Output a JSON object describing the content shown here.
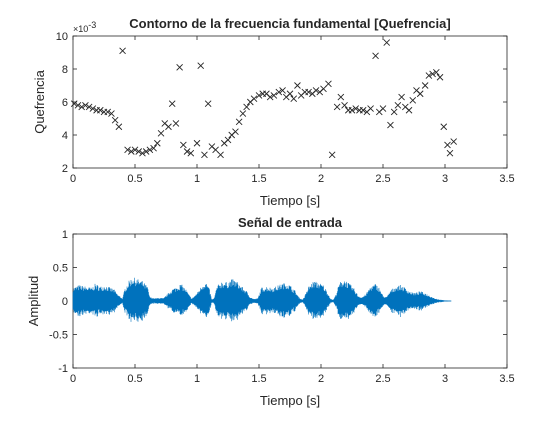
{
  "figure": {
    "background": "#ffffff",
    "marker_color": "#262626",
    "signal_color": "#0072BD"
  },
  "chart_data": [
    {
      "type": "scatter",
      "marker": "x",
      "title": "Contorno de la frecuencia fundamental [Quefrencia]",
      "xlabel": "Tiempo [s]",
      "ylabel": "Quefrencia",
      "y_exponent_label": "×10",
      "y_exponent": "-3",
      "xlim": [
        0,
        3.5
      ],
      "ylim": [
        2,
        10
      ],
      "x_ticks": [
        "0",
        "0.5",
        "1",
        "1.5",
        "2",
        "2.5",
        "3",
        "3.5"
      ],
      "y_ticks": [
        "2",
        "4",
        "6",
        "8",
        "10"
      ],
      "series": [
        {
          "points": [
            [
              0.01,
              5.9
            ],
            [
              0.04,
              5.8
            ],
            [
              0.07,
              5.7
            ],
            [
              0.1,
              5.8
            ],
            [
              0.13,
              5.7
            ],
            [
              0.16,
              5.6
            ],
            [
              0.19,
              5.5
            ],
            [
              0.22,
              5.5
            ],
            [
              0.25,
              5.4
            ],
            [
              0.28,
              5.4
            ],
            [
              0.31,
              5.3
            ],
            [
              0.34,
              4.9
            ],
            [
              0.37,
              4.5
            ],
            [
              0.4,
              9.1
            ],
            [
              0.44,
              3.1
            ],
            [
              0.47,
              3.0
            ],
            [
              0.5,
              3.1
            ],
            [
              0.53,
              3.0
            ],
            [
              0.56,
              2.9
            ],
            [
              0.59,
              3.0
            ],
            [
              0.62,
              3.1
            ],
            [
              0.65,
              3.2
            ],
            [
              0.68,
              3.5
            ],
            [
              0.71,
              4.1
            ],
            [
              0.74,
              4.7
            ],
            [
              0.77,
              4.5
            ],
            [
              0.8,
              5.9
            ],
            [
              0.83,
              4.7
            ],
            [
              0.86,
              8.1
            ],
            [
              0.89,
              3.4
            ],
            [
              0.92,
              3.0
            ],
            [
              0.95,
              2.9
            ],
            [
              1.0,
              3.5
            ],
            [
              1.03,
              8.2
            ],
            [
              1.06,
              2.8
            ],
            [
              1.09,
              5.9
            ],
            [
              1.12,
              3.3
            ],
            [
              1.15,
              3.1
            ],
            [
              1.19,
              2.8
            ],
            [
              1.22,
              3.5
            ],
            [
              1.25,
              3.7
            ],
            [
              1.28,
              4.0
            ],
            [
              1.31,
              4.2
            ],
            [
              1.34,
              4.8
            ],
            [
              1.37,
              5.3
            ],
            [
              1.4,
              5.7
            ],
            [
              1.43,
              6.0
            ],
            [
              1.46,
              6.2
            ],
            [
              1.5,
              6.4
            ],
            [
              1.53,
              6.5
            ],
            [
              1.56,
              6.5
            ],
            [
              1.59,
              6.3
            ],
            [
              1.62,
              6.4
            ],
            [
              1.66,
              6.6
            ],
            [
              1.69,
              6.7
            ],
            [
              1.72,
              6.3
            ],
            [
              1.75,
              6.5
            ],
            [
              1.78,
              6.2
            ],
            [
              1.81,
              7.0
            ],
            [
              1.84,
              6.4
            ],
            [
              1.87,
              6.6
            ],
            [
              1.9,
              6.6
            ],
            [
              1.93,
              6.5
            ],
            [
              1.96,
              6.7
            ],
            [
              1.99,
              6.6
            ],
            [
              2.02,
              6.8
            ],
            [
              2.06,
              7.1
            ],
            [
              2.09,
              2.8
            ],
            [
              2.13,
              5.7
            ],
            [
              2.16,
              6.3
            ],
            [
              2.19,
              5.8
            ],
            [
              2.22,
              5.5
            ],
            [
              2.25,
              5.5
            ],
            [
              2.28,
              5.6
            ],
            [
              2.31,
              5.5
            ],
            [
              2.34,
              5.5
            ],
            [
              2.37,
              5.4
            ],
            [
              2.4,
              5.6
            ],
            [
              2.44,
              8.8
            ],
            [
              2.47,
              5.4
            ],
            [
              2.5,
              5.6
            ],
            [
              2.53,
              9.6
            ],
            [
              2.56,
              4.6
            ],
            [
              2.59,
              5.4
            ],
            [
              2.62,
              5.8
            ],
            [
              2.65,
              6.3
            ],
            [
              2.68,
              5.7
            ],
            [
              2.71,
              5.5
            ],
            [
              2.74,
              6.1
            ],
            [
              2.77,
              6.7
            ],
            [
              2.8,
              6.5
            ],
            [
              2.84,
              7.0
            ],
            [
              2.87,
              7.6
            ],
            [
              2.9,
              7.7
            ],
            [
              2.93,
              7.8
            ],
            [
              2.96,
              7.5
            ],
            [
              2.99,
              4.5
            ],
            [
              3.02,
              3.4
            ],
            [
              3.04,
              2.9
            ],
            [
              3.07,
              3.6
            ]
          ]
        }
      ]
    },
    {
      "type": "line",
      "title": "Señal de entrada",
      "xlabel": "Tiempo [s]",
      "ylabel": "Amplitud",
      "xlim": [
        0,
        3.5
      ],
      "ylim": [
        -1,
        1
      ],
      "x_ticks": [
        "0",
        "0.5",
        "1",
        "1.5",
        "2",
        "2.5",
        "3",
        "3.5"
      ],
      "y_ticks": [
        "-1",
        "-0.5",
        "0",
        "0.5",
        "1"
      ],
      "signal_end": 3.05,
      "envelope": [
        [
          0.0,
          0.2
        ],
        [
          0.05,
          0.24
        ],
        [
          0.1,
          0.22
        ],
        [
          0.15,
          0.2
        ],
        [
          0.18,
          0.26
        ],
        [
          0.22,
          0.22
        ],
        [
          0.26,
          0.24
        ],
        [
          0.3,
          0.2
        ],
        [
          0.33,
          0.18
        ],
        [
          0.36,
          0.1
        ],
        [
          0.4,
          0.04
        ],
        [
          0.42,
          0.2
        ],
        [
          0.45,
          0.3
        ],
        [
          0.48,
          0.36
        ],
        [
          0.52,
          0.33
        ],
        [
          0.56,
          0.3
        ],
        [
          0.6,
          0.22
        ],
        [
          0.62,
          0.06
        ],
        [
          0.66,
          0.04
        ],
        [
          0.7,
          0.05
        ],
        [
          0.73,
          0.04
        ],
        [
          0.76,
          0.1
        ],
        [
          0.8,
          0.18
        ],
        [
          0.84,
          0.22
        ],
        [
          0.87,
          0.26
        ],
        [
          0.91,
          0.18
        ],
        [
          0.94,
          0.08
        ],
        [
          0.96,
          0.04
        ],
        [
          1.0,
          0.12
        ],
        [
          1.04,
          0.24
        ],
        [
          1.07,
          0.3
        ],
        [
          1.1,
          0.18
        ],
        [
          1.12,
          0.02
        ],
        [
          1.14,
          0.05
        ],
        [
          1.16,
          0.22
        ],
        [
          1.2,
          0.3
        ],
        [
          1.24,
          0.28
        ],
        [
          1.28,
          0.33
        ],
        [
          1.32,
          0.3
        ],
        [
          1.36,
          0.22
        ],
        [
          1.4,
          0.15
        ],
        [
          1.43,
          0.06
        ],
        [
          1.46,
          0.03
        ],
        [
          1.49,
          0.04
        ],
        [
          1.52,
          0.2
        ],
        [
          1.56,
          0.22
        ],
        [
          1.6,
          0.2
        ],
        [
          1.64,
          0.22
        ],
        [
          1.68,
          0.26
        ],
        [
          1.72,
          0.28
        ],
        [
          1.75,
          0.24
        ],
        [
          1.79,
          0.16
        ],
        [
          1.82,
          0.06
        ],
        [
          1.85,
          0.02
        ],
        [
          1.87,
          0.08
        ],
        [
          1.9,
          0.22
        ],
        [
          1.94,
          0.3
        ],
        [
          1.98,
          0.28
        ],
        [
          2.02,
          0.24
        ],
        [
          2.05,
          0.14
        ],
        [
          2.08,
          0.03
        ],
        [
          2.1,
          0.02
        ],
        [
          2.12,
          0.1
        ],
        [
          2.15,
          0.28
        ],
        [
          2.19,
          0.33
        ],
        [
          2.23,
          0.26
        ],
        [
          2.27,
          0.18
        ],
        [
          2.3,
          0.08
        ],
        [
          2.33,
          0.06
        ],
        [
          2.36,
          0.1
        ],
        [
          2.4,
          0.22
        ],
        [
          2.44,
          0.26
        ],
        [
          2.47,
          0.2
        ],
        [
          2.5,
          0.08
        ],
        [
          2.53,
          0.06
        ],
        [
          2.56,
          0.16
        ],
        [
          2.6,
          0.22
        ],
        [
          2.64,
          0.24
        ],
        [
          2.68,
          0.2
        ],
        [
          2.72,
          0.14
        ],
        [
          2.76,
          0.12
        ],
        [
          2.8,
          0.15
        ],
        [
          2.84,
          0.12
        ],
        [
          2.88,
          0.08
        ],
        [
          2.92,
          0.04
        ],
        [
          2.96,
          0.02
        ],
        [
          3.0,
          0.01
        ],
        [
          3.05,
          0.005
        ]
      ]
    }
  ]
}
